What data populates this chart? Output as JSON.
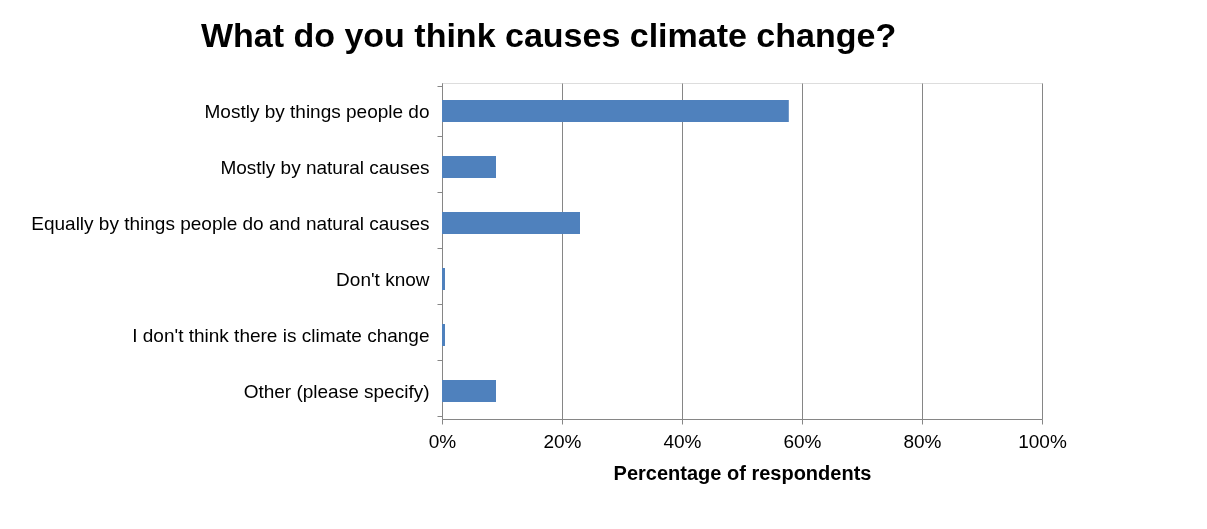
{
  "chart_data": {
    "type": "bar",
    "orientation": "horizontal",
    "title": "What do you think causes climate change?",
    "xlabel": "Percentage of respondents",
    "categories": [
      "Mostly by things people do",
      "Mostly by natural causes",
      "Equally by things people do and natural causes",
      "Don't know",
      "I don't think there is climate change",
      "Other (please specify)"
    ],
    "values": [
      57.8,
      9,
      23,
      0.5,
      0.5,
      9
    ],
    "color": "#4f81bd",
    "xlim": [
      0,
      100
    ],
    "xticks": [
      {
        "value": 0,
        "label": "0%"
      },
      {
        "value": 20,
        "label": "20%"
      },
      {
        "value": 40,
        "label": "40%"
      },
      {
        "value": 60,
        "label": "60%"
      },
      {
        "value": 80,
        "label": "80%"
      },
      {
        "value": 100,
        "label": "100%"
      }
    ],
    "grid": "x"
  }
}
